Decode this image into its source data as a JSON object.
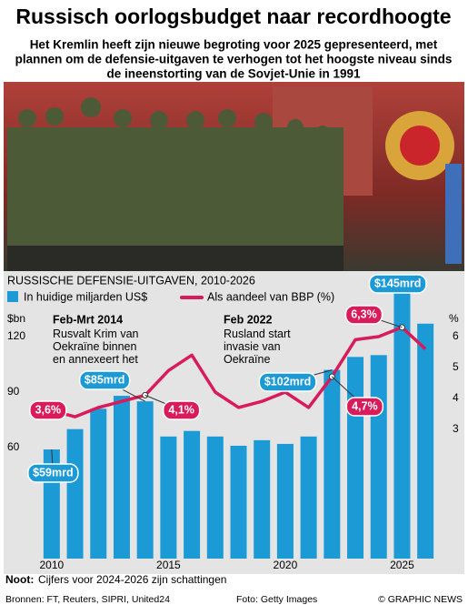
{
  "header": {
    "title": "Russisch oorlogsbudget naar recordhoogte",
    "subtitle": [
      "Het Kremlin heeft zijn nieuwe begroting voor 2025 gepresenteerd, met",
      "plannen om de defensie-uitgaven te verhogen tot het hoogste niveau sinds",
      "de ineenstorting van de Sovjet-Unie in 1991"
    ]
  },
  "chart_data": {
    "type": "bar",
    "title": "RUSSISCHE DEFENSIE-UITGAVEN, 2010-2026",
    "x": [
      2010,
      2011,
      2012,
      2013,
      2014,
      2015,
      2016,
      2017,
      2018,
      2019,
      2020,
      2021,
      2022,
      2023,
      2024,
      2025,
      2026
    ],
    "xlim": [
      2009.5,
      2026.5
    ],
    "xticks": [
      2010,
      2015,
      2020,
      2025
    ],
    "ylabel": "$bn",
    "ylim": [
      0,
      150
    ],
    "yticks": [
      60,
      90,
      120
    ],
    "y2label": "%",
    "y2lim": [
      -1.2,
      7.8
    ],
    "y2ticks": [
      3,
      4,
      5,
      6
    ],
    "series": [
      {
        "name": "In huidige miljarden US$",
        "color": "#1b9ad6",
        "values": [
          59,
          70,
          81,
          88,
          85,
          66,
          69,
          66,
          61,
          64,
          62,
          66,
          102,
          109,
          110,
          145,
          127
        ],
        "value_labels": [
          "$59mrd",
          null,
          null,
          null,
          "$85mrd",
          null,
          null,
          null,
          null,
          null,
          null,
          null,
          "$102mrd",
          null,
          null,
          "$145mrd",
          null
        ]
      },
      {
        "name": "Als aandeel van BBP (%)",
        "color": "#d81b5b",
        "axis": "y2",
        "type": "line",
        "values": [
          3.6,
          3.4,
          3.7,
          3.9,
          4.1,
          4.9,
          5.4,
          4.2,
          3.7,
          3.9,
          4.2,
          3.7,
          4.7,
          5.9,
          6.0,
          6.3,
          5.6
        ],
        "value_labels": [
          "3,6%",
          null,
          null,
          null,
          "4,1%",
          null,
          null,
          null,
          null,
          null,
          null,
          null,
          "4,7%",
          null,
          null,
          "6,3%",
          null
        ]
      }
    ],
    "annotations": [
      {
        "title": "Feb-Mrt 2014",
        "text": "Rusvalt Krim van Oekraïne binnen en annexeert het"
      },
      {
        "title": "Feb 2022",
        "text": "Rusland start invasie van Oekraïne"
      }
    ]
  },
  "footer": {
    "note_label": "Noot:",
    "note": "Cijfers voor 2024-2026 zijn schattingen",
    "sources": "Bronnen: FT, Reuters, SIPRI, United24",
    "photo": "Foto: Getty Images",
    "credit": "© GRAPHIC NEWS"
  }
}
